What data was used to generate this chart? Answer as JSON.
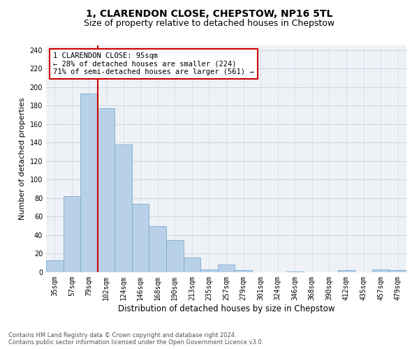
{
  "title": "1, CLARENDON CLOSE, CHEPSTOW, NP16 5TL",
  "subtitle": "Size of property relative to detached houses in Chepstow",
  "xlabel": "Distribution of detached houses by size in Chepstow",
  "ylabel": "Number of detached properties",
  "categories": [
    "35sqm",
    "57sqm",
    "79sqm",
    "102sqm",
    "124sqm",
    "146sqm",
    "168sqm",
    "190sqm",
    "213sqm",
    "235sqm",
    "257sqm",
    "279sqm",
    "301sqm",
    "324sqm",
    "346sqm",
    "368sqm",
    "390sqm",
    "412sqm",
    "435sqm",
    "457sqm",
    "479sqm"
  ],
  "values": [
    13,
    82,
    193,
    177,
    138,
    74,
    50,
    35,
    16,
    3,
    8,
    2,
    0,
    0,
    1,
    0,
    0,
    2,
    0,
    3,
    2
  ],
  "bar_color": "#b8d0e8",
  "bar_edge_color": "#7aaccc",
  "grid_color": "#ccd8e4",
  "background_color": "#eef2f7",
  "vline_color": "#cc0000",
  "annotation_text": "1 CLARENDON CLOSE: 95sqm\n← 28% of detached houses are smaller (224)\n71% of semi-detached houses are larger (561) →",
  "annotation_box_color": "#cc0000",
  "ylim": [
    0,
    245
  ],
  "yticks": [
    0,
    20,
    40,
    60,
    80,
    100,
    120,
    140,
    160,
    180,
    200,
    220,
    240
  ],
  "footer_text": "Contains HM Land Registry data © Crown copyright and database right 2024.\nContains public sector information licensed under the Open Government Licence v3.0.",
  "title_fontsize": 10,
  "subtitle_fontsize": 9,
  "tick_fontsize": 7,
  "ylabel_fontsize": 8,
  "xlabel_fontsize": 8.5,
  "footer_fontsize": 6,
  "annot_fontsize": 7.5
}
